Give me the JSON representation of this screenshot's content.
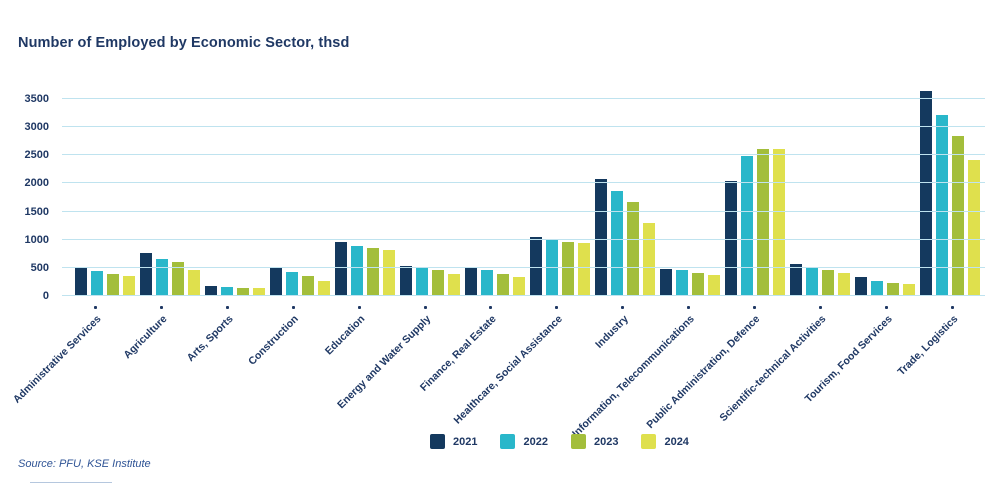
{
  "title": "Number of Employed by Economic Sector, thsd",
  "source_note": "Source: PFU, KSE Institute",
  "colors": {
    "series": [
      "#14395E",
      "#29B7CA",
      "#A3BE3B",
      "#DFE04D"
    ],
    "gridline": "#BFE3EF",
    "label_text": "#1F3864",
    "source_text": "#2E5395"
  },
  "legend": {
    "items": [
      {
        "label": "2021",
        "color": "#14395E"
      },
      {
        "label": "2022",
        "color": "#29B7CA"
      },
      {
        "label": "2023",
        "color": "#A3BE3B"
      },
      {
        "label": "2024",
        "color": "#DFE04D"
      }
    ]
  },
  "chart_data": {
    "type": "bar",
    "title": "Number of Employed by Economic Sector, thsd",
    "xlabel": "",
    "ylabel": "",
    "ylim": [
      0,
      3500
    ],
    "yticks": [
      0,
      500,
      1000,
      1500,
      2000,
      2500,
      3000,
      3500
    ],
    "grid": true,
    "legend_position": "bottom",
    "categories": [
      "Administrative Services",
      "Agriculture",
      "Arts, Sports",
      "Construction",
      "Education",
      "Energy and Water Supply",
      "Finance, Real Estate",
      "Healthcare, Social Assistance",
      "Industry",
      "Information, Telecommunications",
      "Public Administration, Defence",
      "Scientific-technical Activities",
      "Tourism, Food Services",
      "Trade, Logistics"
    ],
    "series": [
      {
        "name": "2021",
        "values": [
          480,
          750,
          160,
          500,
          940,
          510,
          490,
          1030,
          2060,
          460,
          2030,
          550,
          320,
          3630
        ]
      },
      {
        "name": "2022",
        "values": [
          430,
          640,
          150,
          410,
          870,
          490,
          440,
          990,
          1840,
          450,
          2470,
          490,
          250,
          3190
        ]
      },
      {
        "name": "2023",
        "values": [
          380,
          590,
          130,
          340,
          840,
          450,
          370,
          940,
          1660,
          390,
          2600,
          440,
          220,
          2830
        ]
      },
      {
        "name": "2024",
        "values": [
          330,
          450,
          130,
          250,
          800,
          380,
          320,
          930,
          1280,
          350,
          2590,
          390,
          200,
          2400
        ]
      }
    ]
  }
}
